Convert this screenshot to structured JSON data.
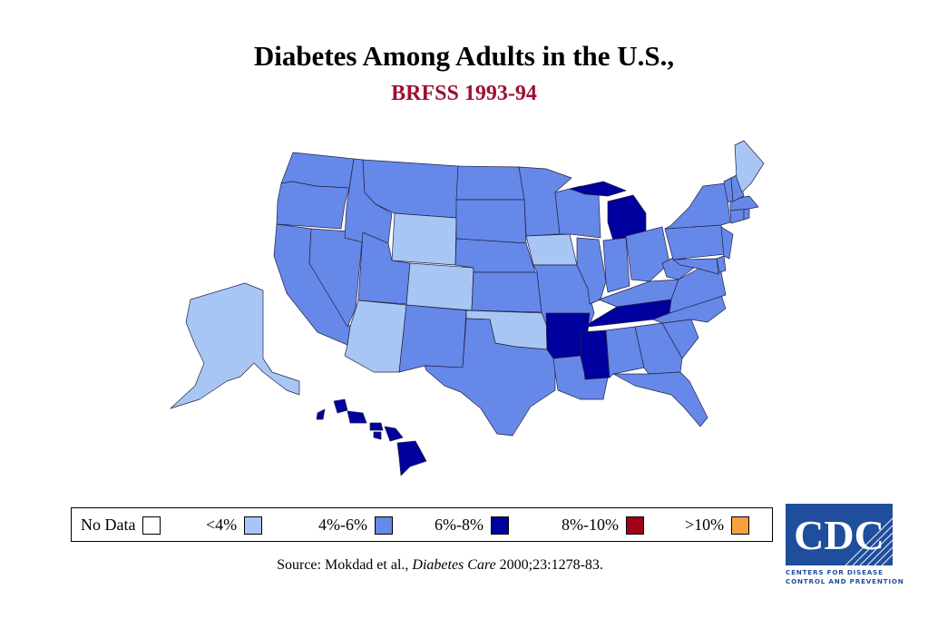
{
  "title": "Diabetes Among Adults in the U.S.,",
  "subtitle": "BRFSS 1993-94",
  "subtitle_color": "#9e1030",
  "legend": [
    {
      "label": "No Data",
      "color": "#ffffff"
    },
    {
      "label": "<4%",
      "color": "#a8c6f4"
    },
    {
      "label": "4%-6%",
      "color": "#6688e8"
    },
    {
      "label": "6%-8%",
      "color": "#00009e"
    },
    {
      "label": "8%-10%",
      "color": "#a0001c"
    },
    {
      "label": ">10%",
      "color": "#f8a040"
    }
  ],
  "source": {
    "prefix": "Source: Mokdad et al., ",
    "journal": "Diabetes Care",
    "suffix": " 2000;23:1278-83."
  },
  "logo": {
    "text": "CDC",
    "line1": "Centers for Disease",
    "line2": "Control and Prevention",
    "color": "#1f4e9c"
  },
  "chart_data": {
    "type": "choropleth",
    "bins": [
      "No Data",
      "<4%",
      "4%-6%",
      "6%-8%",
      "8%-10%",
      ">10%"
    ],
    "states": {
      "WA": "4%-6%",
      "OR": "4%-6%",
      "CA": "4%-6%",
      "NV": "4%-6%",
      "ID": "4%-6%",
      "MT": "4%-6%",
      "WY": "<4%",
      "UT": "4%-6%",
      "CO": "<4%",
      "AZ": "<4%",
      "NM": "4%-6%",
      "ND": "4%-6%",
      "SD": "4%-6%",
      "NE": "4%-6%",
      "KS": "4%-6%",
      "OK": "<4%",
      "TX": "4%-6%",
      "MN": "4%-6%",
      "IA": "<4%",
      "MO": "4%-6%",
      "AR": "6%-8%",
      "LA": "4%-6%",
      "WI": "4%-6%",
      "IL": "4%-6%",
      "MI": "6%-8%",
      "IN": "4%-6%",
      "OH": "4%-6%",
      "KY": "4%-6%",
      "TN": "6%-8%",
      "MS": "6%-8%",
      "AL": "4%-6%",
      "GA": "4%-6%",
      "FL": "4%-6%",
      "SC": "4%-6%",
      "NC": "4%-6%",
      "VA": "4%-6%",
      "WV": "4%-6%",
      "PA": "4%-6%",
      "NY": "4%-6%",
      "NJ": "4%-6%",
      "DE": "4%-6%",
      "MD": "4%-6%",
      "CT": "4%-6%",
      "RI": "4%-6%",
      "MA": "4%-6%",
      "VT": "4%-6%",
      "NH": "4%-6%",
      "ME": "<4%",
      "AK": "<4%",
      "HI": "6%-8%"
    }
  }
}
